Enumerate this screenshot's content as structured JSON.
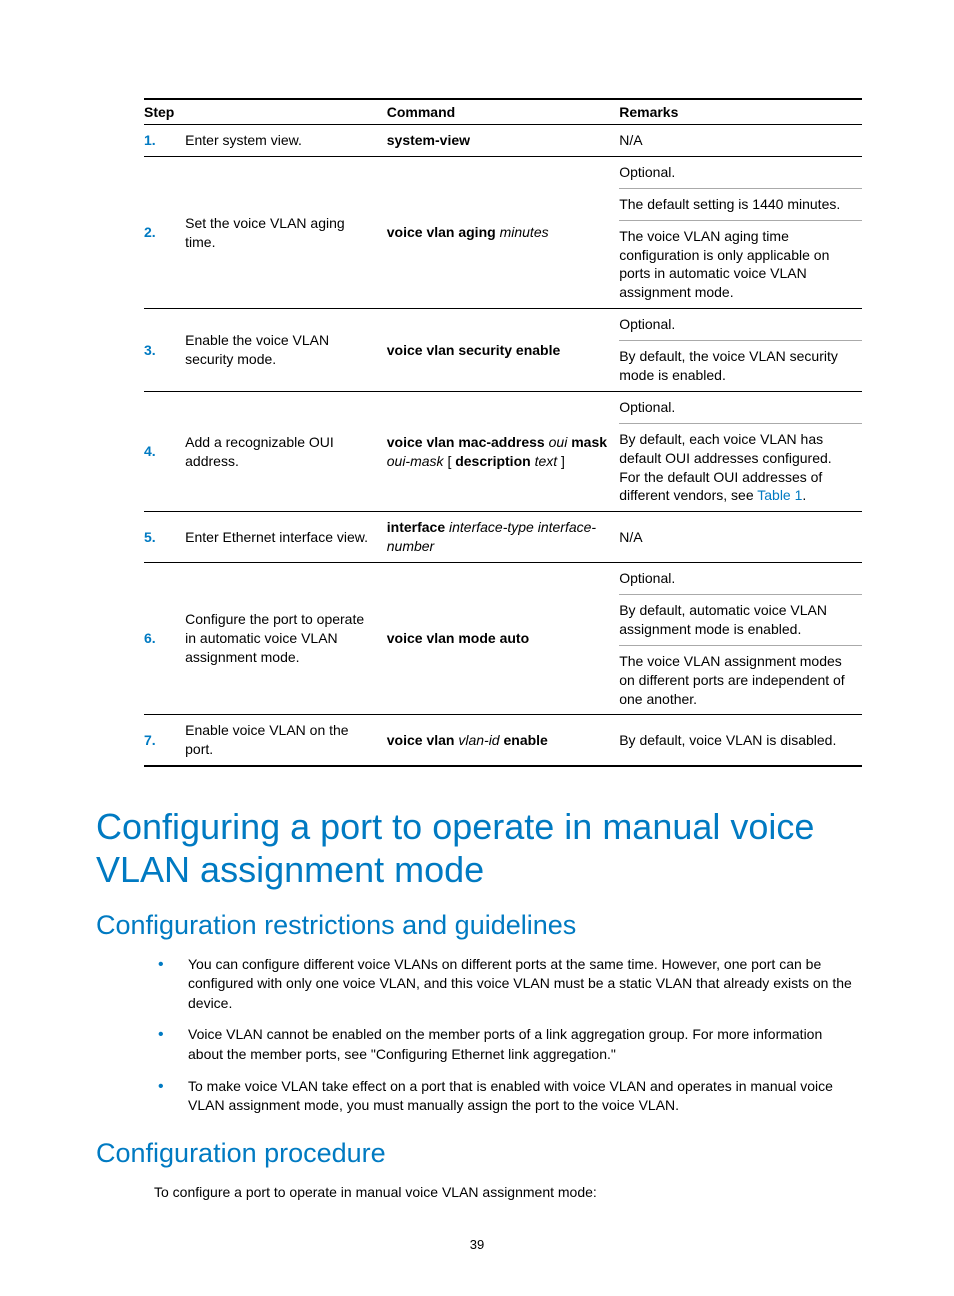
{
  "table": {
    "headers": {
      "step": "Step",
      "command": "Command",
      "remarks": "Remarks"
    },
    "rows": [
      {
        "num": "1.",
        "desc": "Enter system view.",
        "cmd_bold": "system-view",
        "remarks": [
          "N/A"
        ],
        "remark_seps": []
      },
      {
        "num": "2.",
        "desc": "Set the voice VLAN aging time.",
        "cmd_bold": "voice vlan aging ",
        "cmd_ital": "minutes",
        "remarks": [
          "Optional.",
          "The default setting is 1440 minutes.",
          "The voice VLAN aging time configuration is only applicable on ports in automatic voice VLAN assignment mode."
        ],
        "remark_seps": [
          "none",
          "thin",
          "thin"
        ]
      },
      {
        "num": "3.",
        "desc": "Enable the voice VLAN security mode.",
        "cmd_bold": "voice vlan security enable",
        "remarks": [
          "Optional.",
          "By default, the voice VLAN security mode is enabled."
        ],
        "remark_seps": [
          "none",
          "thin"
        ]
      },
      {
        "num": "4.",
        "desc": "Add a recognizable OUI address.",
        "cmd_parts": [
          {
            "t": "voice vlan mac-address ",
            "s": "bold"
          },
          {
            "t": "oui ",
            "s": "ital"
          },
          {
            "t": "mask ",
            "s": "bold"
          },
          {
            "t": "oui-mask ",
            "s": "ital"
          },
          {
            "t": "[ ",
            "s": ""
          },
          {
            "t": "description ",
            "s": "bold"
          },
          {
            "t": "text ",
            "s": "ital"
          },
          {
            "t": "]",
            "s": ""
          }
        ],
        "remarks": [
          "Optional.",
          "By default, each voice VLAN has default OUI addresses configured. For the default OUI addresses of different vendors, see "
        ],
        "remark_link": "Table 1",
        "remark_tail": ".",
        "remark_seps": [
          "none",
          "thin"
        ]
      },
      {
        "num": "5.",
        "desc": "Enter Ethernet interface view.",
        "cmd_parts": [
          {
            "t": "interface ",
            "s": "bold"
          },
          {
            "t": "interface-type interface-number",
            "s": "ital"
          }
        ],
        "remarks": [
          "N/A"
        ],
        "remark_seps": []
      },
      {
        "num": "6.",
        "desc": "Configure the port to operate in automatic voice VLAN assignment mode.",
        "cmd_bold": "voice vlan mode auto",
        "remarks": [
          "Optional.",
          "By default, automatic voice VLAN assignment mode is enabled.",
          "The voice VLAN assignment modes on different ports are independent of one another."
        ],
        "remark_seps": [
          "none",
          "thin",
          "thin"
        ]
      },
      {
        "num": "7.",
        "desc": "Enable voice VLAN on the port.",
        "cmd_parts": [
          {
            "t": "voice vlan ",
            "s": "bold"
          },
          {
            "t": "vlan-id ",
            "s": "ital"
          },
          {
            "t": "enable",
            "s": "bold"
          }
        ],
        "remarks": [
          "By default, voice VLAN is disabled."
        ],
        "remark_seps": []
      }
    ]
  },
  "headings": {
    "h1": "Configuring a port to operate in manual voice VLAN assignment mode",
    "h2a": "Configuration restrictions and guidelines",
    "h2b": "Configuration procedure"
  },
  "bullets": [
    "You can configure different voice VLANs on different ports at the same time. However, one port can be configured with only one voice VLAN, and this voice VLAN must be a static VLAN that already exists on the device.",
    "Voice VLAN cannot be enabled on the member ports of a link aggregation group. For more information about the member ports, see \"Configuring Ethernet link aggregation.\"",
    "To make voice VLAN take effect on a port that is enabled with voice VLAN and operates in manual voice VLAN assignment mode, you must manually assign the port to the voice VLAN."
  ],
  "body_after_proc": "To configure a port to operate in manual voice VLAN assignment mode:",
  "page_number": "39",
  "colors": {
    "accent": "#007ac2",
    "text": "#000000",
    "rule_thin": "#aaaaaa",
    "rule_thick": "#000000",
    "background": "#ffffff"
  },
  "fonts": {
    "body_family": "Arial, Helvetica, sans-serif",
    "heading_family": "Segoe UI Light, Helvetica Neue, Arial, sans-serif",
    "body_size_pt": 10.5,
    "h1_size_pt": 27,
    "h2_size_pt": 20
  }
}
